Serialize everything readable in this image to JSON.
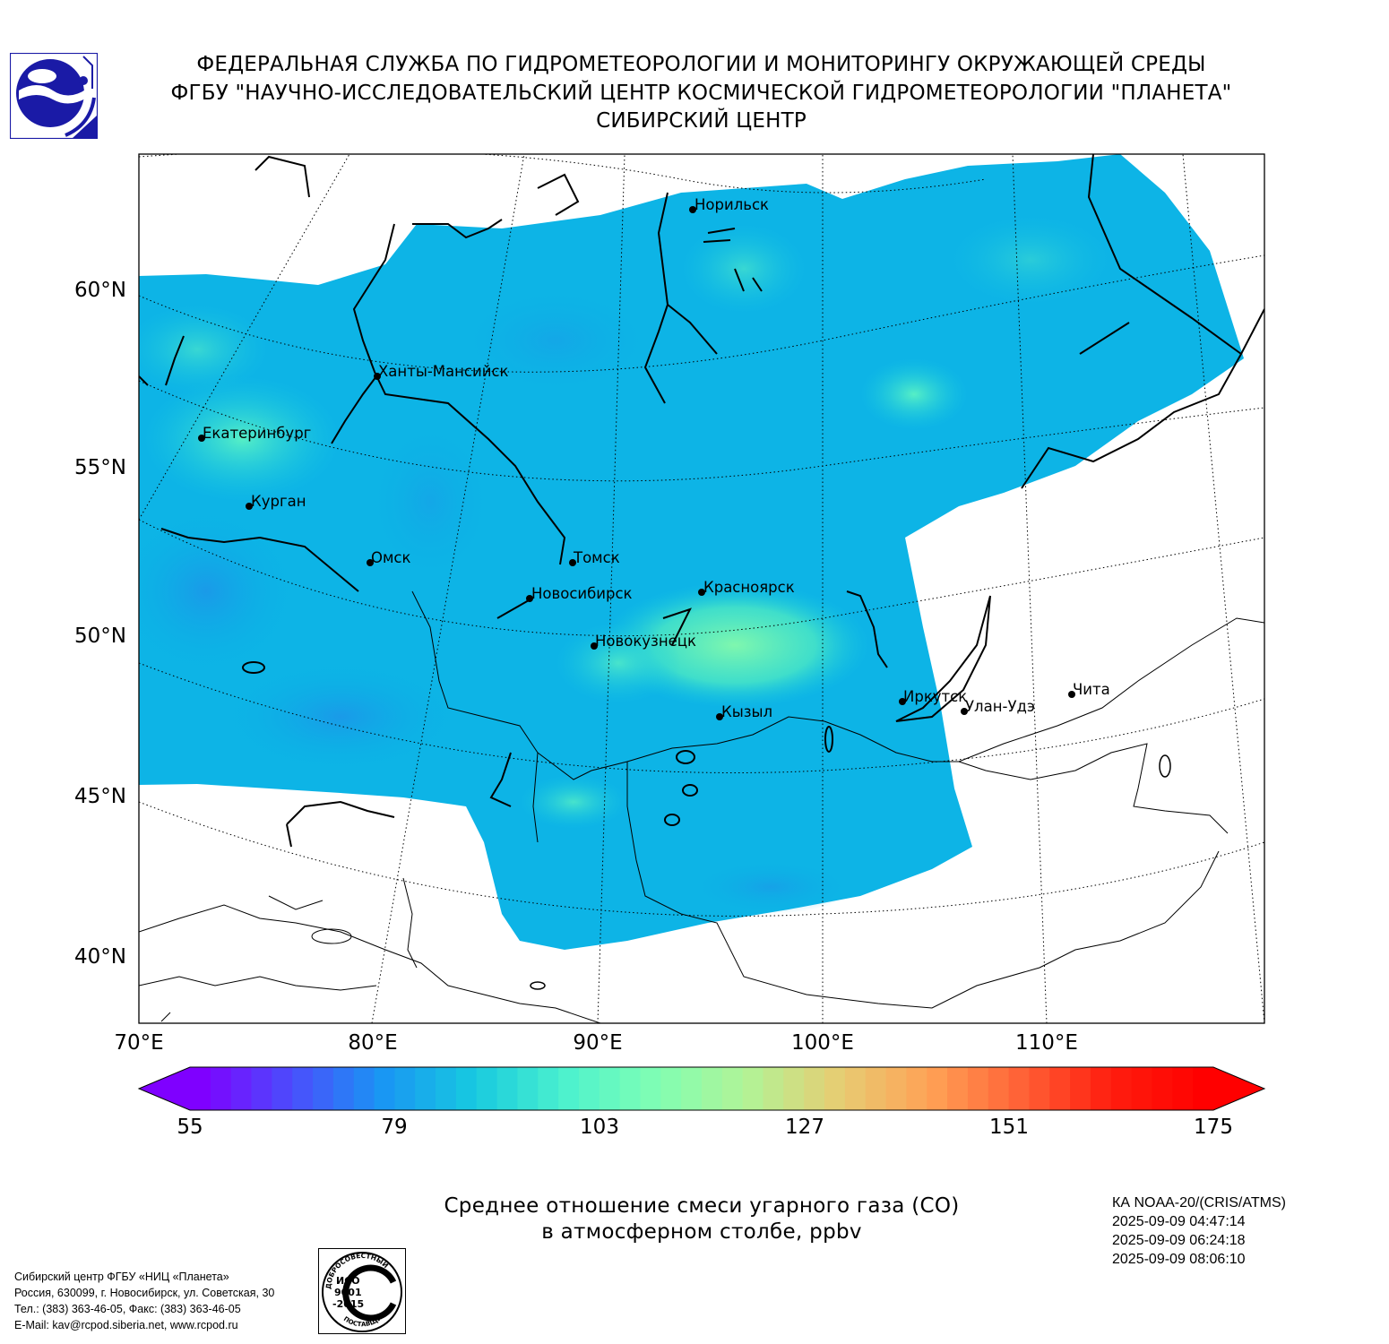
{
  "header": {
    "line1": "ФЕДЕРАЛЬНАЯ СЛУЖБА ПО ГИДРОМЕТЕОРОЛОГИИ И МОНИТОРИНГУ ОКРУЖАЮЩЕЙ СРЕДЫ",
    "line2": "ФГБУ \"НАУЧНО-ИССЛЕДОВАТЕЛЬСКИЙ ЦЕНТР КОСМИЧЕСКОЙ ГИДРОМЕТЕОРОЛОГИИ \"ПЛАНЕТА\"",
    "line3": "СИБИРСКИЙ ЦЕНТР"
  },
  "logo": {
    "icon": "roshydromet-logo-icon",
    "colors": [
      "#1a1aa6",
      "#ffffff"
    ]
  },
  "map": {
    "latitude_labels": [
      "60°N",
      "55°N",
      "50°N",
      "45°N",
      "40°N"
    ],
    "longitude_labels": [
      "70°E",
      "80°E",
      "90°E",
      "100°E",
      "110°E"
    ],
    "cities": [
      {
        "name": "Норильск"
      },
      {
        "name": "Ханты-Мансийск"
      },
      {
        "name": "Екатеринбург"
      },
      {
        "name": "Курган"
      },
      {
        "name": "Омск"
      },
      {
        "name": "Томск"
      },
      {
        "name": "Новосибирск"
      },
      {
        "name": "Красноярск"
      },
      {
        "name": "Новокузнецк"
      },
      {
        "name": "Кызыл"
      },
      {
        "name": "Иркутск"
      },
      {
        "name": "Улан-Удэ"
      },
      {
        "name": "Чита"
      }
    ],
    "dominant_colors": [
      "#08b2e6",
      "#17c9e0",
      "#3ee0d0",
      "#6ff5b0",
      "#1e9ee8"
    ]
  },
  "colorbar": {
    "tick_labels": [
      "55",
      "79",
      "103",
      "127",
      "151",
      "175"
    ],
    "range": [
      55,
      175
    ],
    "colors": [
      "#7f00ff",
      "#4b4dfc",
      "#1996f3",
      "#17c9e0",
      "#4cf2ce",
      "#80feb3",
      "#b2f396",
      "#e6cd73",
      "#ffa256",
      "#ff6236",
      "#ff1d0e",
      "#ff0000"
    ]
  },
  "caption": {
    "line1": "Среднее отношение смеси угарного газа (CO)",
    "line2": "в атмосферном столбе, ppbv"
  },
  "satellite": {
    "instrument": "КА NOAA-20/(CRIS/ATMS)",
    "time1": "2025-09-09 04:47:14",
    "time2": "2025-09-09 06:24:18",
    "time3": "2025-09-09 08:06:10"
  },
  "contacts": {
    "line1": "Сибирский центр ФГБУ «НИЦ «Планета»",
    "line2": "Россия, 630099, г. Новосибирск, ул. Советская, 30",
    "line3": "Тел.: (383) 363-46-05, Факс: (383) 363-46-05",
    "line4": "E-Mail: kav@rcpod.siberia.net, www.rcpod.ru"
  },
  "iso_badge": {
    "top_text": "ДОБРОСОВЕСТНЫЙ",
    "line1": "ИСО",
    "line2": "9001",
    "line3": "-2015",
    "bottom_text": "ПОСТАВЩИК"
  }
}
